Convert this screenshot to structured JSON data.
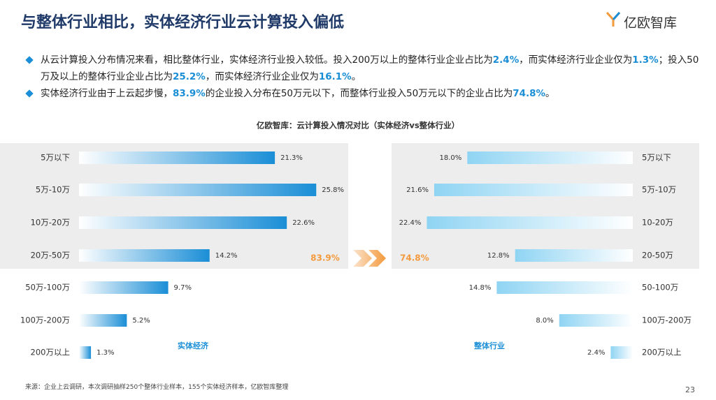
{
  "header": {
    "title": "与整体行业相比，实体经济行业云计算投入偏低",
    "logo": "亿欧智库"
  },
  "bullets": [
    [
      "从云计算投入分布情况来看，相比整体行业，实体经济行业投入较低。投入200万以上的整体行业企业占比为",
      "2.4%",
      "，而实体经济行业企业仅为",
      "1.3%",
      "；投入50万及以上的整体行业企业占比为",
      "25.2%",
      "，而实体经济行业企业仅为",
      "16.1%",
      "。"
    ],
    [
      "实体经济行业由于上云起步慢，",
      "83.9%",
      "的企业投入分布在50万元以下，而整体行业投入50万元以下的企业占比为",
      "74.8%",
      "。"
    ]
  ],
  "figure_title": "亿欧智库：云计算投入情况对比（实体经济vs整体行业）",
  "chart_data": [
    {
      "type": "bar",
      "name": "实体经济",
      "color": "#1a8ed6",
      "categories": [
        "5万以下",
        "5万-10万",
        "10万-20万",
        "20万-50万",
        "50万-100万",
        "100万-200万",
        "200万以上"
      ],
      "values": [
        21.3,
        25.8,
        22.6,
        14.2,
        9.7,
        5.2,
        1.3
      ],
      "value_labels": [
        "21.3%",
        "25.8%",
        "22.6%",
        "14.2%",
        "9.7%",
        "5.2%",
        "1.3%"
      ],
      "total": "83.9%"
    },
    {
      "type": "bar",
      "name": "整体行业",
      "color": "#8fd4f3",
      "categories": [
        "5万以下",
        "5万-10万",
        "10-20万",
        "20-50万",
        "50-100万",
        "100万-200万",
        "200万以上"
      ],
      "values": [
        18.0,
        21.6,
        22.4,
        12.8,
        14.8,
        8.0,
        2.4
      ],
      "value_labels": [
        "18.0%",
        "21.6%",
        "22.4%",
        "12.8%",
        "14.8%",
        "8.0%",
        "2.4%"
      ],
      "total": "74.8%"
    }
  ],
  "source": "来源：企业上云调研，本次调研抽样250个整体行业样本，155个实体经济样本，亿欧智库整理",
  "page_number": "23"
}
